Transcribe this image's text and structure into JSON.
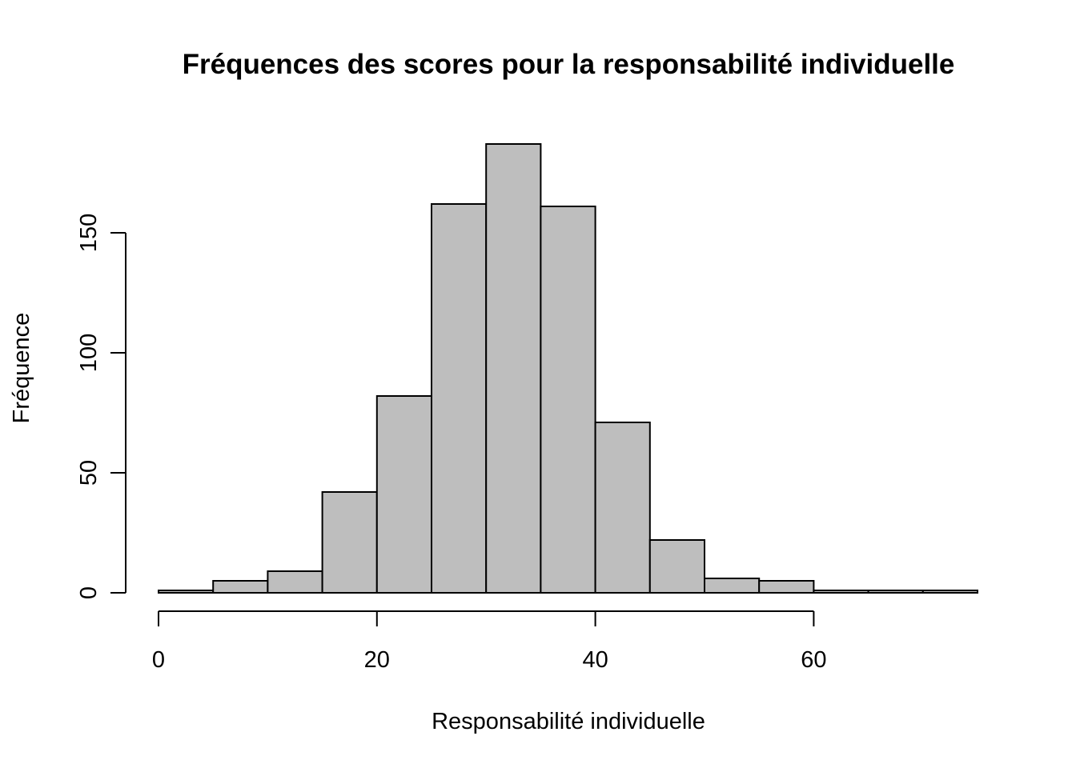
{
  "chart_data": {
    "type": "bar",
    "title": "Fréquences des scores pour la responsabilité individuelle",
    "xlabel": "Responsabilité individuelle",
    "ylabel": "Fréquence",
    "bin_edges": [
      0,
      5,
      10,
      15,
      20,
      25,
      30,
      35,
      40,
      45,
      50,
      55,
      60,
      65,
      70,
      75
    ],
    "values": [
      1,
      5,
      9,
      42,
      82,
      162,
      187,
      161,
      71,
      22,
      6,
      5,
      1,
      1,
      1
    ],
    "xlim": [
      0,
      75
    ],
    "ylim": [
      0,
      187
    ],
    "x_ticks": [
      0,
      20,
      40,
      60
    ],
    "x_tick_labels": [
      "0",
      "20",
      "40",
      "60"
    ],
    "y_ticks": [
      0,
      50,
      100,
      150
    ],
    "y_tick_labels": [
      "0",
      "50",
      "100",
      "150"
    ],
    "bar_color": "#bebebe",
    "edge_color": "#000000",
    "grid": false,
    "legend": "none"
  }
}
